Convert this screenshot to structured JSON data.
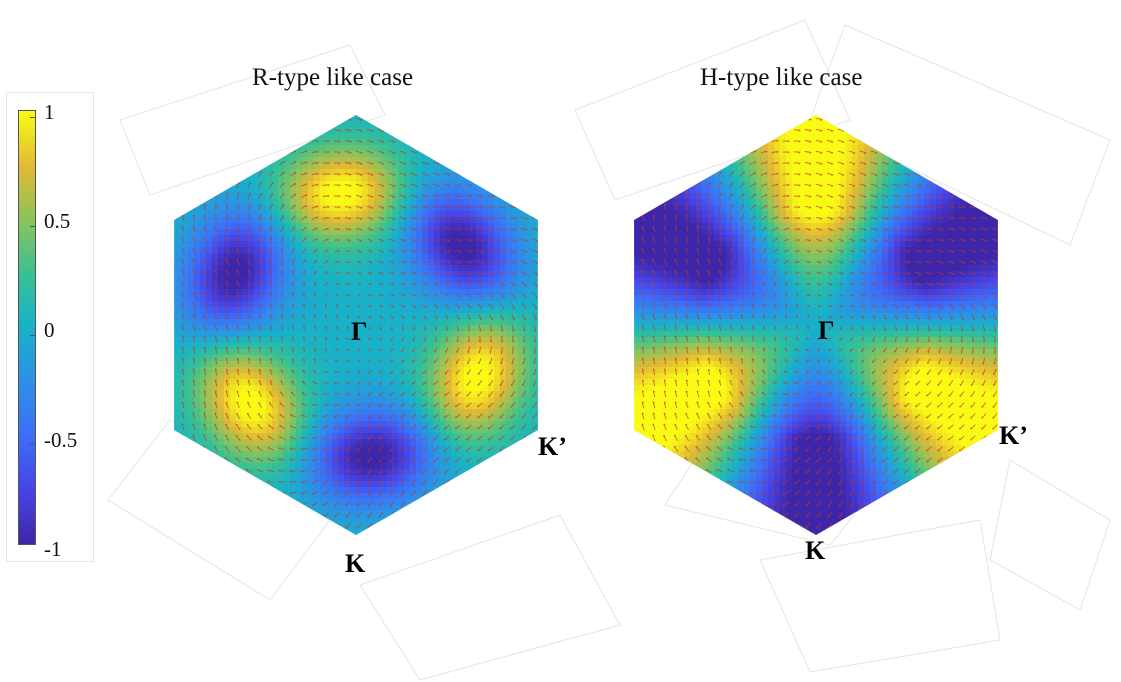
{
  "chart_data": {
    "type": "heatmap",
    "colormap": "parula",
    "colorbar": {
      "min": -1,
      "max": 1,
      "ticks": [
        "1",
        "0.5",
        "0",
        "-0.5",
        "-1"
      ]
    },
    "panels": [
      {
        "title": "R-type like case",
        "region": "hexagonal Brillouin zone",
        "points": {
          "center": "Γ",
          "corner_right": "K’",
          "corner_bottom": "K"
        },
        "pattern": "sin(3θ + 0.35) lobes at r≈0.63 with spiral vector arrows",
        "colors": {
          "max": "#f9fb14",
          "zero": "#2fbcb7",
          "min": "#3e26a8"
        }
      },
      {
        "title": "H-type like case",
        "region": "hexagonal Brillouin zone",
        "points": {
          "center": "Γ",
          "corner_right": "K’",
          "corner_bottom": "K"
        },
        "pattern": "sin(3θ) sectors growing with radius, spiral vector arrows",
        "colors": {
          "max": "#f9fb14",
          "zero": "#2fbcb7",
          "min": "#3e26a8"
        }
      }
    ],
    "arrow_color": "#c0392b"
  }
}
